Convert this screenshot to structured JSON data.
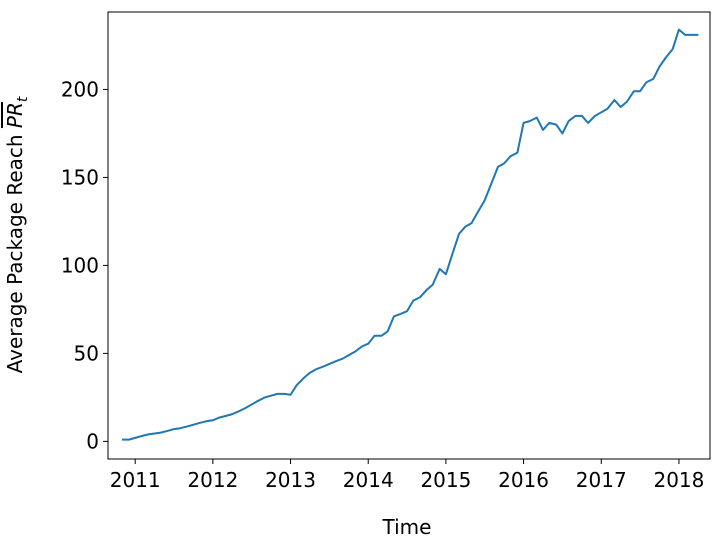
{
  "chart_data": {
    "type": "line",
    "title": "",
    "xlabel": "Time",
    "ylabel": "Average Package Reach",
    "ylabel_math": "PR",
    "ylabel_sub": "t",
    "xlim": [
      2010.65,
      2018.4
    ],
    "ylim": [
      -10,
      244
    ],
    "x_ticks": [
      2011,
      2012,
      2013,
      2014,
      2015,
      2016,
      2017,
      2018
    ],
    "x_tick_labels": [
      "2011",
      "2012",
      "2013",
      "2014",
      "2015",
      "2016",
      "2017",
      "2018"
    ],
    "y_ticks": [
      0,
      50,
      100,
      150,
      200
    ],
    "y_tick_labels": [
      "0",
      "50",
      "100",
      "150",
      "200"
    ],
    "grid": false,
    "color": "#1f77b4",
    "series": [
      {
        "x": [
          2010.83,
          2010.92,
          2011.0,
          2011.08,
          2011.17,
          2011.25,
          2011.33,
          2011.42,
          2011.5,
          2011.58,
          2011.67,
          2011.75,
          2011.83,
          2011.92,
          2012.0,
          2012.08,
          2012.17,
          2012.25,
          2012.33,
          2012.42,
          2012.5,
          2012.58,
          2012.67,
          2012.75,
          2012.83,
          2012.92,
          2013.0,
          2013.08,
          2013.17,
          2013.25,
          2013.33,
          2013.42,
          2013.5,
          2013.58,
          2013.67,
          2013.75,
          2013.83,
          2013.92,
          2014.0,
          2014.08,
          2014.17,
          2014.25,
          2014.33,
          2014.42,
          2014.5,
          2014.58,
          2014.67,
          2014.75,
          2014.83,
          2014.92,
          2015.0,
          2015.08,
          2015.17,
          2015.25,
          2015.33,
          2015.42,
          2015.5,
          2015.58,
          2015.67,
          2015.75,
          2015.83,
          2015.92,
          2016.0,
          2016.08,
          2016.17,
          2016.25,
          2016.33,
          2016.42,
          2016.5,
          2016.58,
          2016.67,
          2016.75,
          2016.83,
          2016.92,
          2017.0,
          2017.08,
          2017.17,
          2017.25,
          2017.33,
          2017.42,
          2017.5,
          2017.58,
          2017.67,
          2017.75,
          2017.83,
          2017.92,
          2018.0,
          2018.08,
          2018.17,
          2018.25
        ],
        "y": [
          1,
          1,
          2,
          3,
          4,
          4.5,
          5,
          6,
          7,
          7.5,
          8.5,
          9.5,
          10.5,
          11.5,
          12,
          13.5,
          14.5,
          15.5,
          17,
          19,
          21,
          23,
          25,
          26,
          27,
          27,
          26.5,
          32,
          36,
          39,
          41,
          42.5,
          44,
          45.5,
          47,
          49,
          51,
          54,
          55.5,
          60,
          60,
          62.5,
          71,
          72.5,
          74,
          80,
          82,
          86,
          89,
          98,
          95,
          106,
          118,
          122,
          124,
          131,
          137,
          146,
          156,
          158,
          162,
          164,
          181,
          182,
          184,
          177,
          181,
          180,
          175,
          182,
          185,
          185,
          181,
          185,
          187,
          189,
          194,
          190,
          193,
          199,
          199,
          204,
          206,
          213,
          218,
          223,
          234,
          231,
          231,
          231
        ]
      }
    ]
  }
}
